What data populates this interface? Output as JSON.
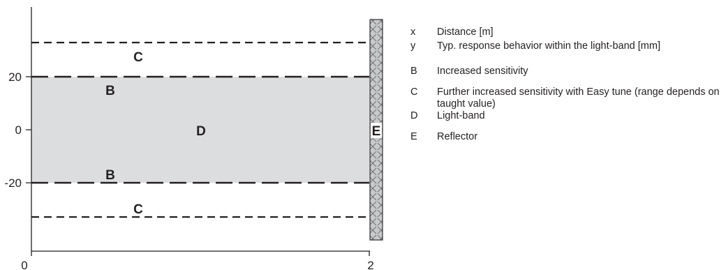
{
  "diagram": {
    "x_axis": {
      "ticks": [
        "0",
        "2"
      ]
    },
    "y_axis": {
      "ticks": [
        "20",
        "0",
        "-20"
      ]
    },
    "zones": {
      "C": "C",
      "B": "B",
      "D": "D",
      "E": "E"
    }
  },
  "legend": [
    {
      "key": "x",
      "text": "Distance [m]"
    },
    {
      "key": "y",
      "text": "Typ. response behavior within the light-band [mm]"
    },
    {
      "key": "B",
      "text": "Increased sensitivity"
    },
    {
      "key": "C",
      "text": "Further increased sensitivity with Easy tune (range depends on taught value)"
    },
    {
      "key": "D",
      "text": "Light-band"
    },
    {
      "key": "E",
      "text": "Reflector"
    }
  ],
  "colors": {
    "band_fill": "#dcdddf",
    "reflector_fill": "#c8c9cb",
    "line": "#231f20"
  }
}
